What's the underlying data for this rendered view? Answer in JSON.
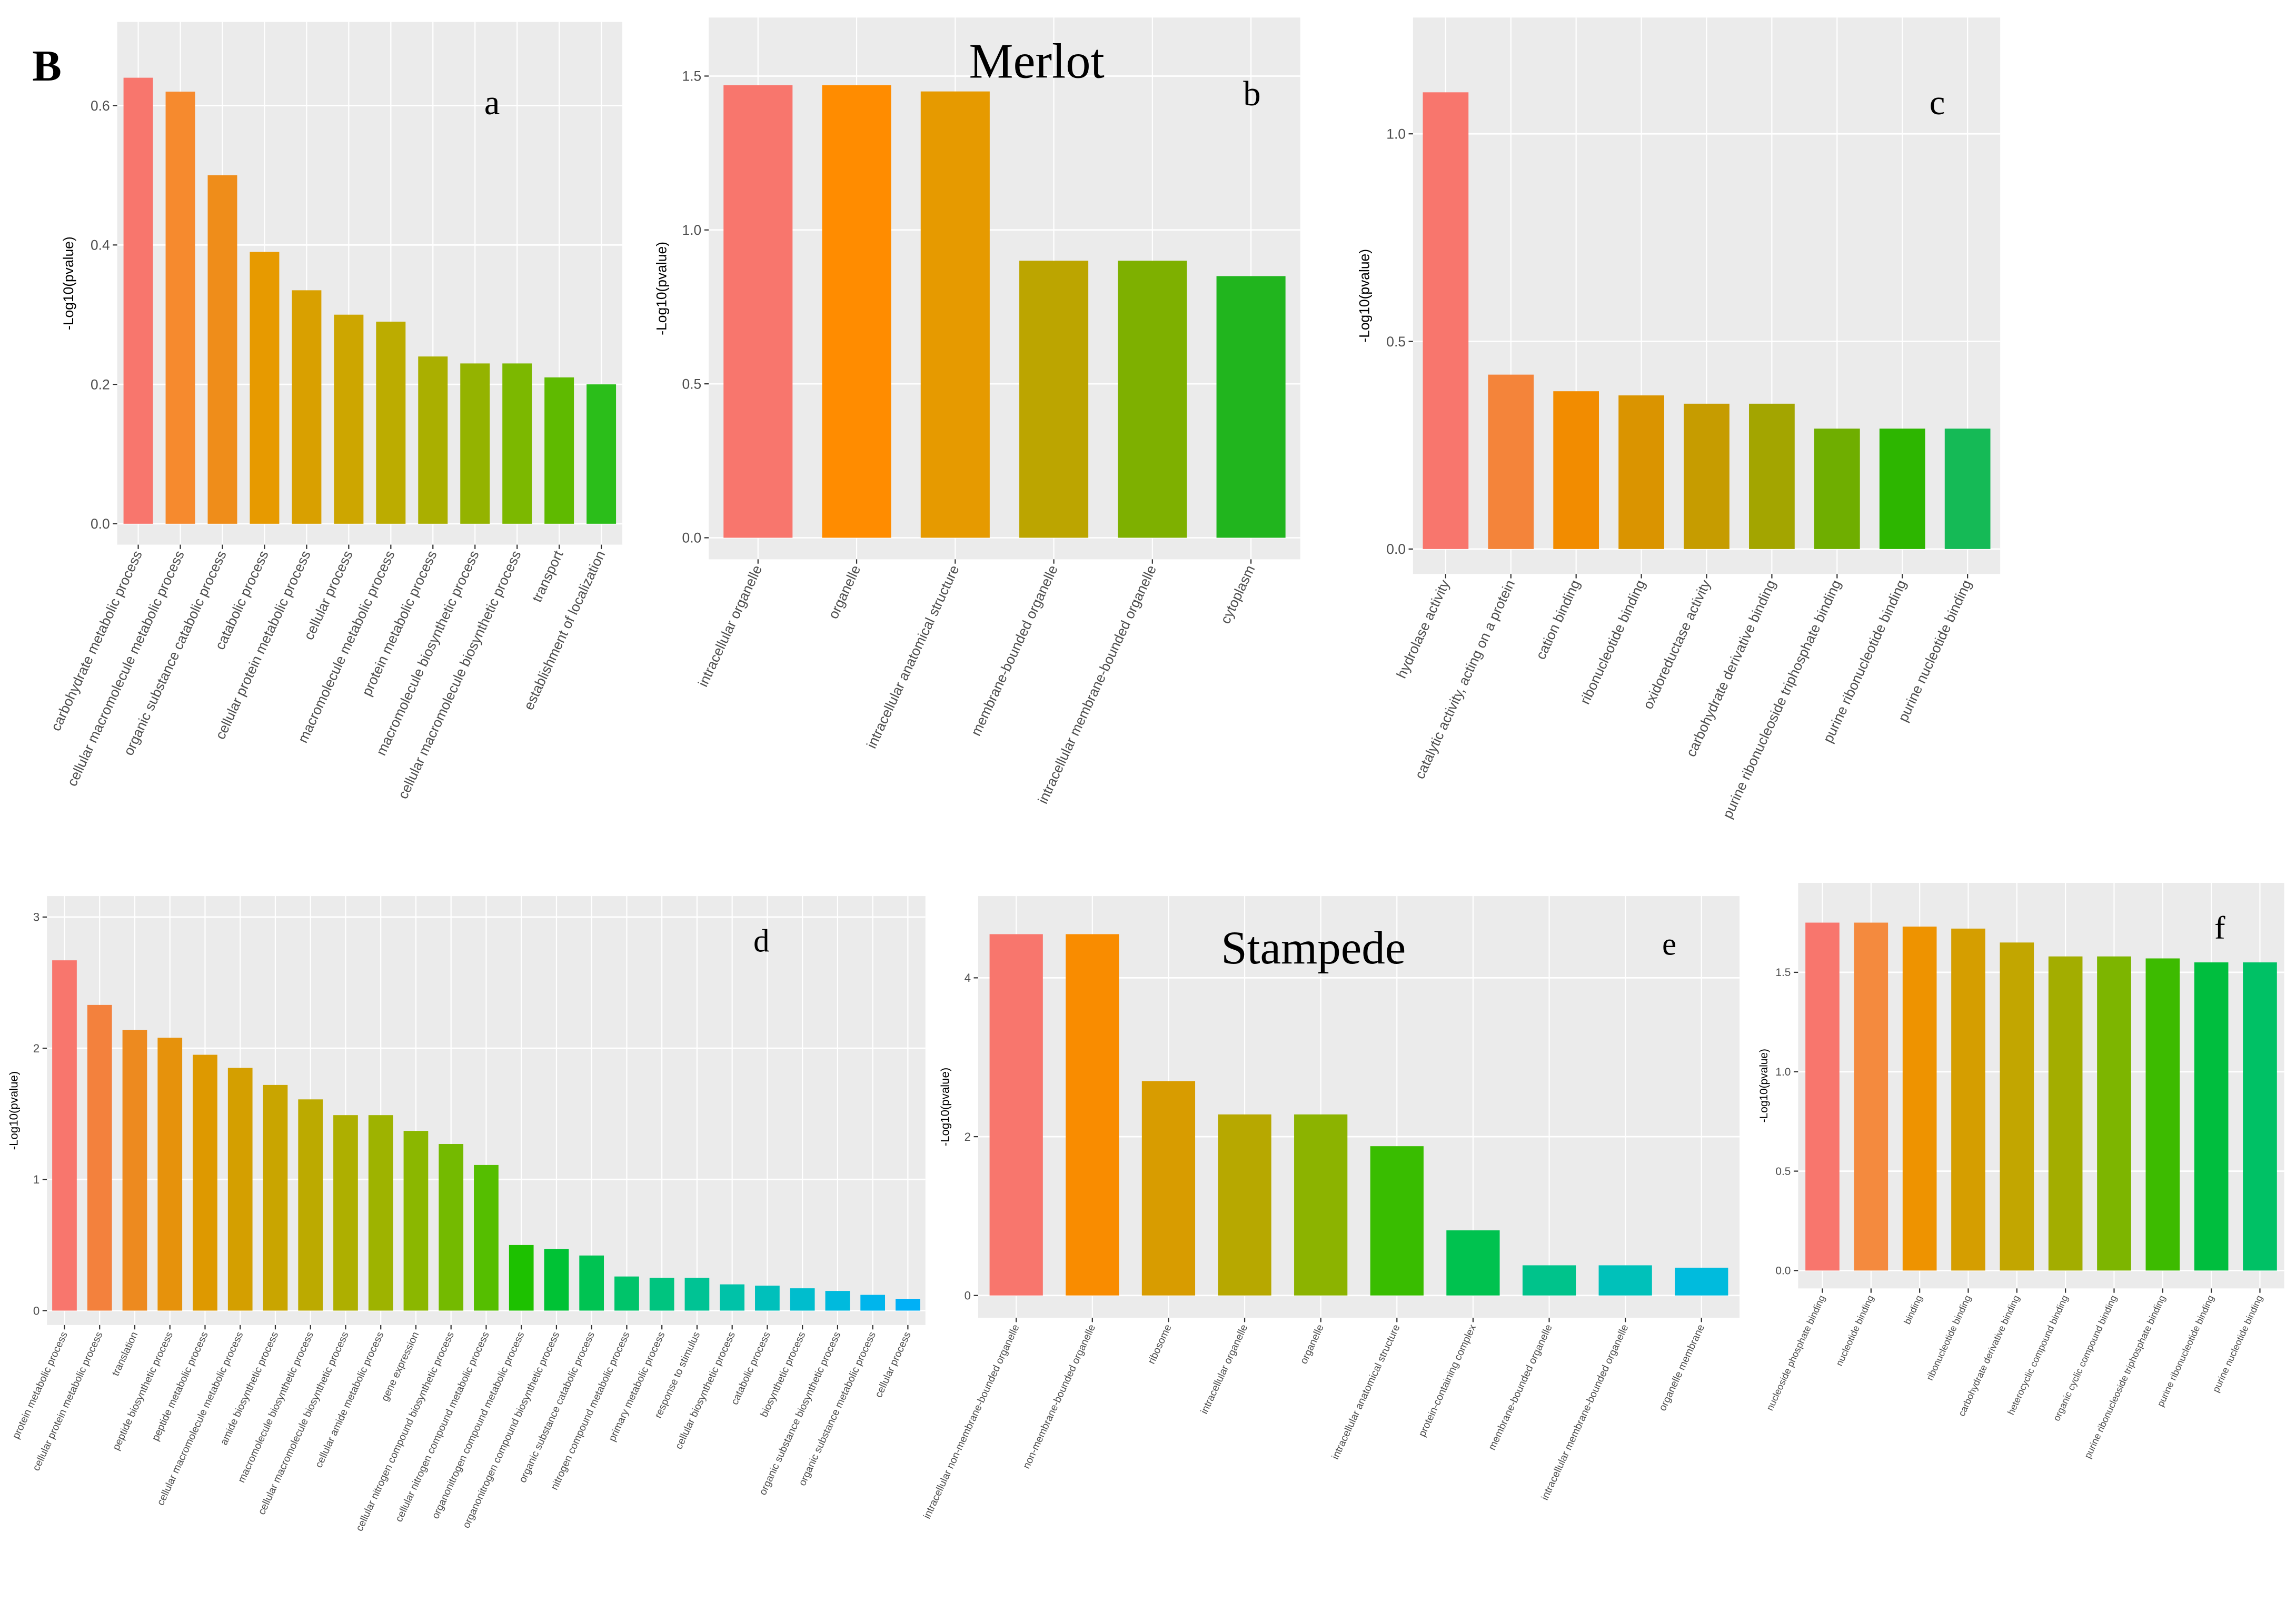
{
  "figure_label": "B",
  "chart_data": [
    {
      "type": "bar",
      "annotation": "a",
      "y_label": "-Log10(pvalue)",
      "categories": [
        "carbohydrate metabolic process",
        "cellular macromolecule metabolic process",
        "organic substance catabolic process",
        "catabolic process",
        "cellular protein metabolic process",
        "cellular process",
        "macromolecule metabolic process",
        "protein metabolic process",
        "macromolecule biosynthetic process",
        "cellular macromolecule biosynthetic process",
        "transport",
        "establishment of localization"
      ],
      "values": [
        0.64,
        0.62,
        0.5,
        0.39,
        0.335,
        0.3,
        0.29,
        0.24,
        0.23,
        0.23,
        0.21,
        0.2
      ],
      "colors": [
        "#F8766D",
        "#F68A2E",
        "#EF8D1A",
        "#E79A00",
        "#D9A000",
        "#CDA600",
        "#BCAC00",
        "#AAAF00",
        "#94B300",
        "#7CB800",
        "#5FBA00",
        "#2BBE1A"
      ],
      "ylim": [
        -0.03,
        0.72
      ],
      "yticks": [
        {
          "value": 0,
          "label": "0.0"
        },
        0.2,
        0.4,
        0.6
      ],
      "grid": true
    },
    {
      "type": "bar",
      "title": "Merlot",
      "annotation": "b",
      "y_label": "-Log10(pvalue)",
      "categories": [
        "intracellular organelle",
        "organelle",
        "intracellular anatomical structure",
        "membrane-bounded organelle",
        "intracellular membrane-bounded organelle",
        "cytoplasm"
      ],
      "values": [
        1.47,
        1.47,
        1.45,
        0.9,
        0.9,
        0.85
      ],
      "colors": [
        "#F8766D",
        "#FF8C00",
        "#E69A00",
        "#BCA500",
        "#7EB000",
        "#21B51E"
      ],
      "ylim": [
        -0.07,
        1.69
      ],
      "yticks": [
        {
          "value": 0,
          "label": "0.0"
        },
        0.5,
        {
          "value": 1,
          "label": "1.0"
        },
        1.5
      ],
      "grid": true
    },
    {
      "type": "bar",
      "annotation": "c",
      "y_label": "-Log10(pvalue)",
      "categories": [
        "hydrolase activity",
        "catalytic activity, acting on a protein",
        "cation binding",
        "ribonucleotide binding",
        "oxidoreductase activity",
        "carbohydrate derivative binding",
        "purine ribonucleoside triphosphate binding",
        "purine ribonucleotide binding",
        "purine nucleotide binding"
      ],
      "values": [
        1.1,
        0.42,
        0.38,
        0.37,
        0.35,
        0.35,
        0.29,
        0.29,
        0.29
      ],
      "colors": [
        "#F8766D",
        "#F4843A",
        "#F28C00",
        "#DA9400",
        "#C69C00",
        "#A3A500",
        "#6FAE00",
        "#2DB600",
        "#15BA56"
      ],
      "ylim": [
        -0.06,
        1.28
      ],
      "yticks": [
        {
          "value": 0,
          "label": "0.0"
        },
        0.5,
        {
          "value": 1,
          "label": "1.0"
        }
      ],
      "grid": true
    },
    {
      "type": "bar",
      "annotation": "d",
      "y_label": "-Log10(pvalue)",
      "categories": [
        "protein metabolic process",
        "cellular protein metabolic process",
        "translation",
        "peptide biosynthetic process",
        "peptide metabolic process",
        "cellular macromolecule metabolic process",
        "amide biosynthetic process",
        "macromolecule biosynthetic process",
        "cellular macromolecule biosynthetic process",
        "cellular amide metabolic process",
        "gene expression",
        "cellular nitrogen compound biosynthetic process",
        "cellular nitrogen compound metabolic process",
        "organonitrogen compound metabolic process",
        "organonitrogen compound biosynthetic process",
        "organic substance catabolic process",
        "nitrogen compound metabolic process",
        "primary metabolic process",
        "response to stimulus",
        "cellular biosynthetic process",
        "catabolic process",
        "biosynthetic process",
        "organic substance biosynthetic process",
        "organic substance metabolic process",
        "cellular process"
      ],
      "values": [
        2.67,
        2.33,
        2.14,
        2.08,
        1.95,
        1.85,
        1.72,
        1.61,
        1.49,
        1.49,
        1.37,
        1.27,
        1.11,
        0.5,
        0.47,
        0.42,
        0.26,
        0.25,
        0.25,
        0.2,
        0.19,
        0.17,
        0.15,
        0.12,
        0.09
      ],
      "colors": [
        "#F8766D",
        "#F3813D",
        "#ED8A1F",
        "#E6920C",
        "#DE9900",
        "#D49F00",
        "#C9A500",
        "#BCAA00",
        "#AEAF00",
        "#9EB300",
        "#8BB700",
        "#74BA00",
        "#55BE00",
        "#1DC100",
        "#00C235",
        "#00C352",
        "#00C46A",
        "#00C47F",
        "#00C394",
        "#00C2A8",
        "#00C0BB",
        "#00BDCD",
        "#00BADD",
        "#00B5EC",
        "#00B0F6"
      ],
      "ylim": [
        -0.11,
        3.16
      ],
      "yticks": [
        0,
        1,
        2,
        3
      ],
      "grid": true
    },
    {
      "type": "bar",
      "title": "Stampede",
      "annotation": "e",
      "y_label": "-Log10(pvalue)",
      "categories": [
        "intracellular non-membrane-bounded organelle",
        "non-membrane-bounded organelle",
        "ribosome",
        "intracellular organelle",
        "organelle",
        "intracellular anatomical structure",
        "protein-containing complex",
        "membrane-bounded organelle",
        "intracellular membrane-bounded organelle",
        "organelle membrane"
      ],
      "values": [
        4.55,
        4.55,
        2.7,
        2.28,
        2.28,
        1.88,
        0.82,
        0.38,
        0.38,
        0.35
      ],
      "colors": [
        "#F8766D",
        "#F98C00",
        "#D89C00",
        "#B7A800",
        "#8CB300",
        "#39BD00",
        "#00C24F",
        "#00C38B",
        "#00C1BA",
        "#00BBDD"
      ],
      "ylim": [
        -0.28,
        5.03
      ],
      "yticks": [
        0,
        2,
        4
      ],
      "grid": true
    },
    {
      "type": "bar",
      "annotation": "f",
      "y_label": "-Log10(pvalue)",
      "categories": [
        "nucleoside phosphate binding",
        "nucleotide binding",
        "binding",
        "ribonucleotide binding",
        "carbohydrate derivative binding",
        "heterocyclic compound binding",
        "organic cyclic compound binding",
        "purine ribonucleoside triphosphate binding",
        "purine ribonucleotide binding",
        "purine nucleotide binding"
      ],
      "values": [
        1.75,
        1.75,
        1.73,
        1.72,
        1.65,
        1.58,
        1.58,
        1.57,
        1.55,
        1.55
      ],
      "colors": [
        "#F8766D",
        "#F48A3E",
        "#EE9300",
        "#D59E00",
        "#C2A600",
        "#A3AD00",
        "#7DB500",
        "#3DBB00",
        "#00BE3E",
        "#00C165"
      ],
      "ylim": [
        -0.09,
        1.95
      ],
      "yticks": [
        {
          "value": 0,
          "label": "0.0"
        },
        0.5,
        {
          "value": 1,
          "label": "1.0"
        },
        1.5
      ],
      "grid": true
    }
  ]
}
